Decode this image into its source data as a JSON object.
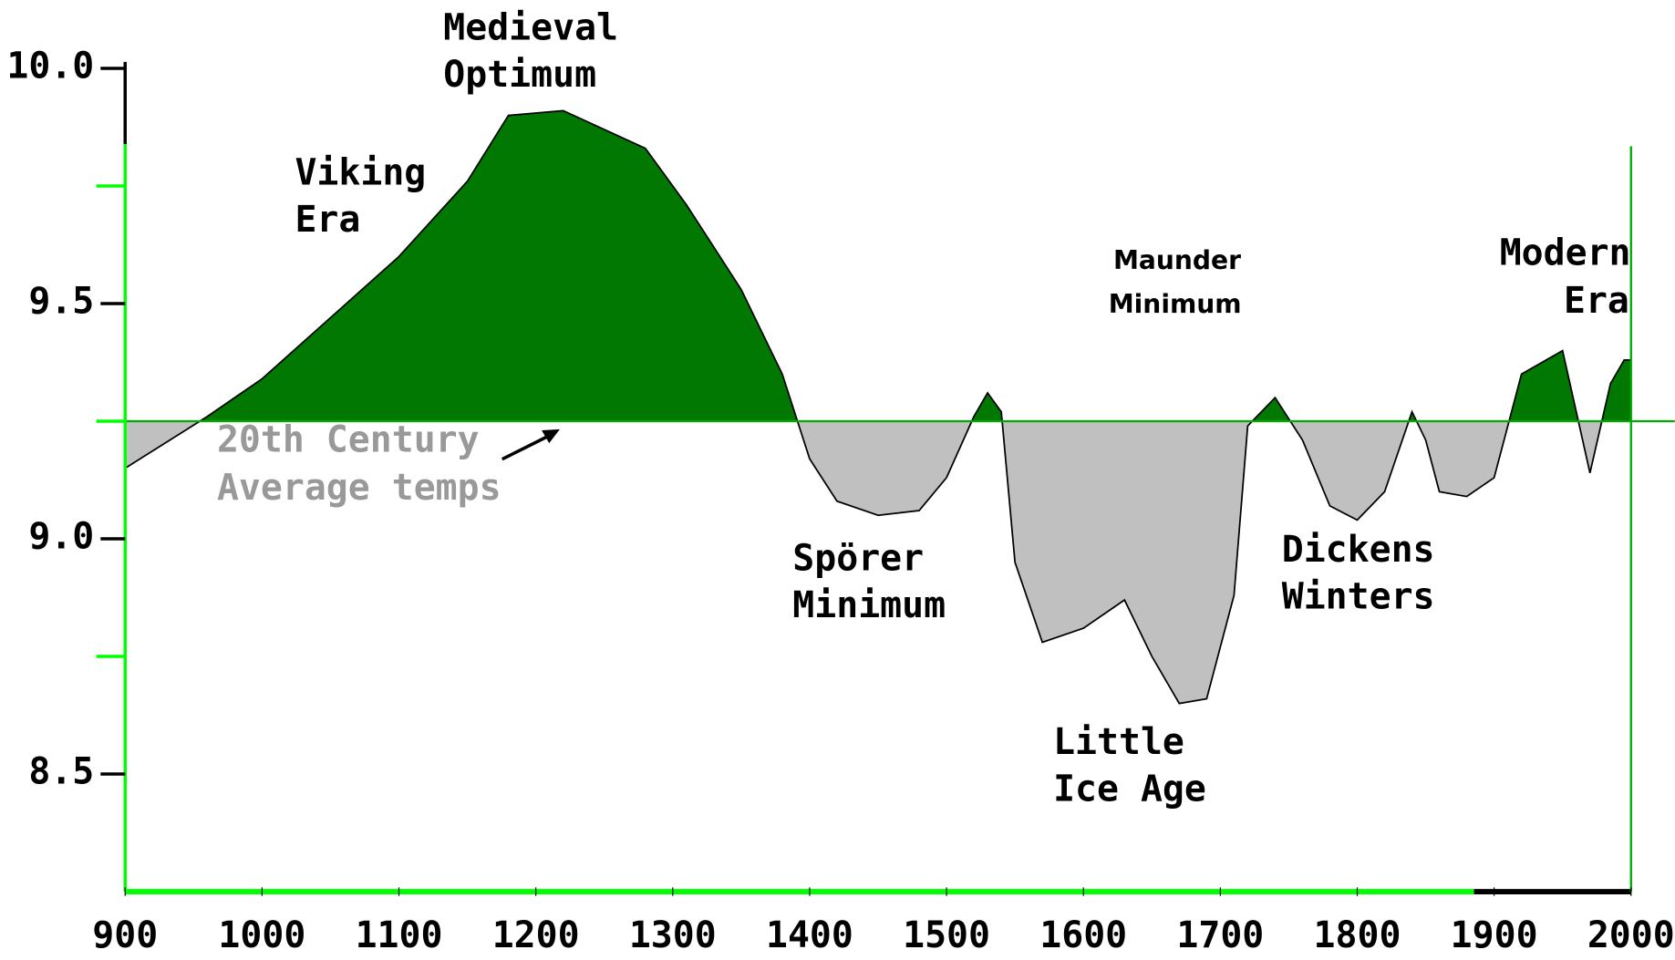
{
  "chart_data": {
    "type": "area",
    "x": [
      900,
      960,
      1000,
      1100,
      1150,
      1180,
      1220,
      1250,
      1280,
      1310,
      1350,
      1380,
      1400,
      1420,
      1450,
      1480,
      1500,
      1520,
      1530,
      1540,
      1550,
      1570,
      1600,
      1630,
      1650,
      1670,
      1690,
      1710,
      1720,
      1740,
      1760,
      1780,
      1800,
      1820,
      1840,
      1850,
      1860,
      1880,
      1900,
      1920,
      1950,
      1970,
      1985,
      1995,
      2000
    ],
    "values": [
      9.15,
      9.26,
      9.34,
      9.6,
      9.76,
      9.9,
      9.91,
      9.87,
      9.83,
      9.71,
      9.53,
      9.35,
      9.17,
      9.08,
      9.05,
      9.06,
      9.13,
      9.26,
      9.31,
      9.27,
      8.95,
      8.78,
      8.81,
      8.87,
      8.75,
      8.65,
      8.66,
      8.88,
      9.24,
      9.3,
      9.21,
      9.07,
      9.04,
      9.1,
      9.27,
      9.21,
      9.1,
      9.09,
      9.13,
      9.35,
      9.4,
      9.14,
      9.33,
      9.38,
      9.38
    ],
    "reference_line": 9.25,
    "color_above": "#017801",
    "color_below": "#c0c0c0",
    "xlim": [
      900,
      2000
    ],
    "xticks": [
      900,
      1000,
      1100,
      1200,
      1300,
      1400,
      1500,
      1600,
      1700,
      1800,
      1900,
      2000
    ],
    "ylim": [
      8.25,
      10.0
    ],
    "yticks": [
      {
        "value": 8.5,
        "label": "8.5"
      },
      {
        "value": 9,
        "label": "9.0"
      },
      {
        "value": 9.5,
        "label": "9.5"
      },
      {
        "value": 10,
        "label": "10.0"
      }
    ],
    "yminor_ticks": [
      8.75,
      9.25,
      9.75
    ],
    "annotations": [
      [
        "Medieval",
        "Optimum"
      ],
      [
        "Viking",
        "Era"
      ],
      [
        "20th Century",
        "Average temps"
      ],
      [
        "Maunder",
        "Minimum"
      ],
      [
        "Modern",
        "Era"
      ],
      [
        "Spörer",
        "Minimum"
      ],
      [
        "Dickens",
        "Winters"
      ],
      [
        "Little",
        "Ice Age"
      ]
    ]
  }
}
